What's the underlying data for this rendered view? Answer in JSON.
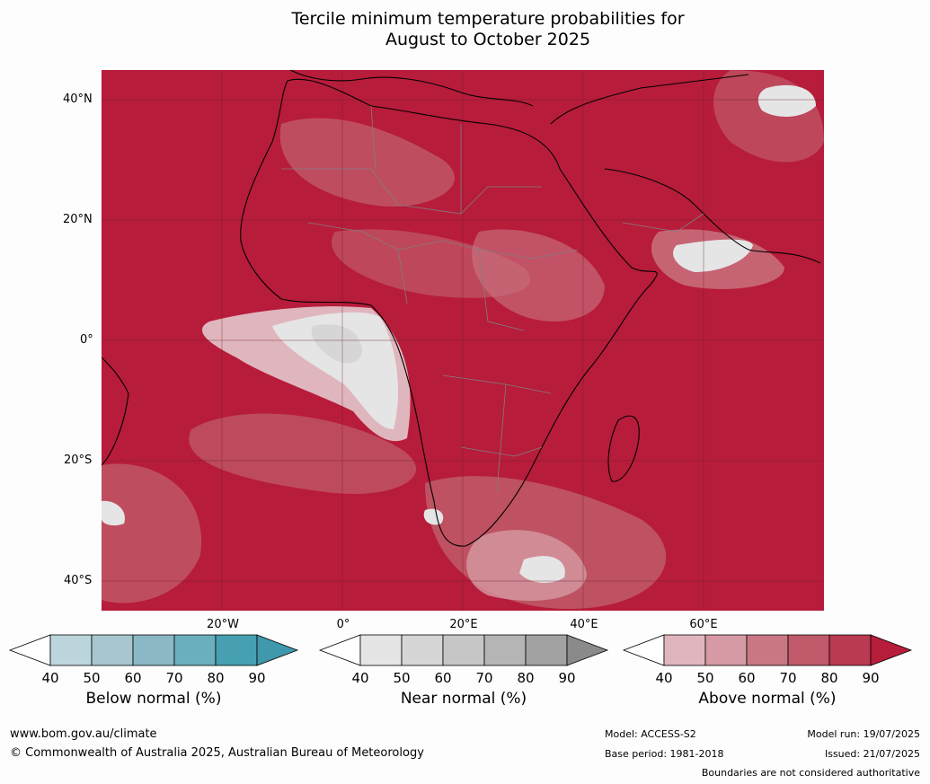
{
  "title_line1": "Tercile minimum temperature probabilities for",
  "title_line2": "August to October 2025",
  "map": {
    "ocean_land_color": "#b71c3b",
    "lat_labels": [
      "40°N",
      "20°N",
      "0°",
      "20°S",
      "40°S"
    ],
    "lon_labels": [
      "20°W",
      "0°",
      "20°E",
      "40°E",
      "60°E"
    ]
  },
  "colorbars": [
    {
      "title": "Below normal (%)",
      "ticks": [
        "40",
        "50",
        "60",
        "70",
        "80",
        "90"
      ],
      "colors": [
        "#bdd5dc",
        "#a7c6cd",
        "#8ab8c4",
        "#6aafbe",
        "#46a0b2"
      ],
      "extend_color": "#3f98ac"
    },
    {
      "title": "Near normal (%)",
      "ticks": [
        "40",
        "50",
        "60",
        "70",
        "80",
        "90"
      ],
      "colors": [
        "#e5e5e5",
        "#d6d6d6",
        "#c6c6c6",
        "#b5b5b5",
        "#a2a2a2"
      ],
      "extend_color": "#8a8a8a"
    },
    {
      "title": "Above normal (%)",
      "ticks": [
        "40",
        "50",
        "60",
        "70",
        "80",
        "90"
      ],
      "colors": [
        "#e0b6be",
        "#d59aa3",
        "#c97783",
        "#c05a6a",
        "#b93a52"
      ],
      "extend_color": "#b71c3b"
    }
  ],
  "footer": {
    "website": "www.bom.gov.au/climate",
    "copyright": "© Commonwealth of Australia 2025, Australian Bureau of Meteorology",
    "model": "Model: ACCESS-S2",
    "base_period": "Base period: 1981-2018",
    "model_run": "Model run: 19/07/2025",
    "issued": "Issued: 21/07/2025",
    "disclaimer": "Boundaries are not considered authoritative"
  }
}
